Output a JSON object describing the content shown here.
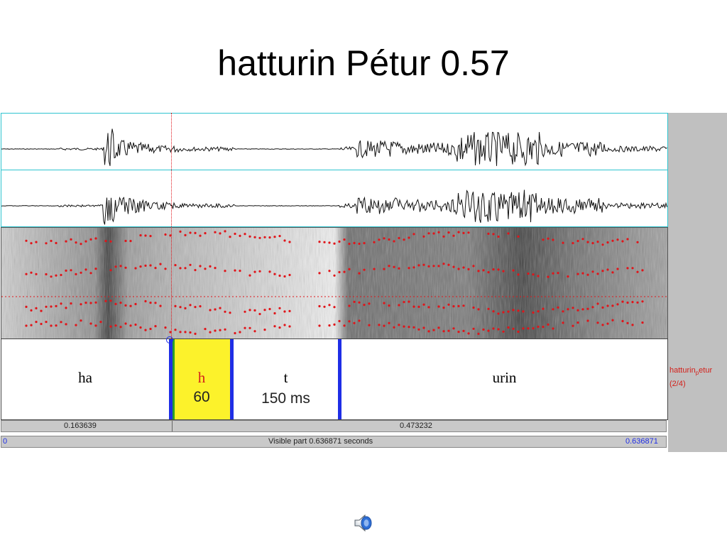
{
  "slide": {
    "title": "hatturin Pétur 0.57"
  },
  "editor": {
    "tier": {
      "intervals": [
        {
          "label": "ha"
        },
        {
          "label": "h",
          "sub": "60"
        },
        {
          "label": "t",
          "sub": "150 ms"
        },
        {
          "label": "urin"
        }
      ],
      "name_main": "hatturin",
      "name_sub": "p",
      "name_rest": "etur",
      "name_count": "(2/4)"
    },
    "bars": {
      "segment_left": "0.163639",
      "segment_right": "0.473232",
      "total_start": "0",
      "visible_label": "Visible part 0.636871 seconds",
      "total_end": "0.636871"
    }
  },
  "colors": {
    "boundary": "#1f2ee6",
    "highlight": "#fcf22b",
    "formant_dots": "#e0151a",
    "cursor": "#e0151a",
    "blue_text": "#1f2ee6",
    "frame_cyan": "#2ec4cf"
  },
  "icons": {
    "audio": "speaker-icon"
  }
}
